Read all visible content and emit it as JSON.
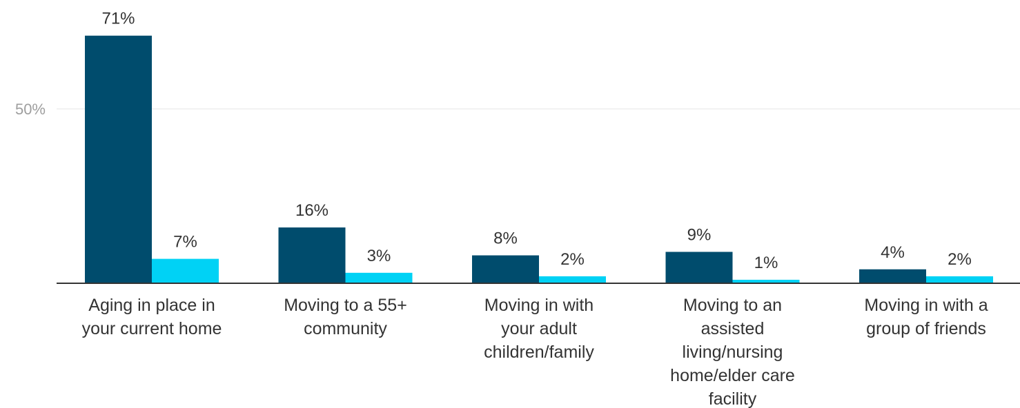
{
  "chart_data": {
    "type": "bar",
    "title": "",
    "xlabel": "",
    "ylabel": "",
    "ylim": [
      0,
      70
    ],
    "yticks": [
      {
        "value": 50,
        "label": "50%"
      }
    ],
    "grid": true,
    "legend": "none",
    "colors": [
      "#004c6d",
      "#00d2f5"
    ],
    "categories": [
      [
        "Aging in place in",
        "your current home"
      ],
      [
        "Moving to a 55+",
        "community"
      ],
      [
        "Moving in with",
        "your adult",
        "children/family"
      ],
      [
        "Moving to an",
        "assisted",
        "living/nursing",
        "home/elder care",
        "facility"
      ],
      [
        "Moving in with a",
        "group of friends"
      ]
    ],
    "series": [
      {
        "values": [
          71,
          16,
          8,
          9,
          4
        ],
        "labels": [
          "71%",
          "16%",
          "8%",
          "9%",
          "4%"
        ]
      },
      {
        "values": [
          7,
          3,
          2,
          1,
          2
        ],
        "labels": [
          "7%",
          "3%",
          "2%",
          "1%",
          "2%"
        ]
      }
    ]
  }
}
